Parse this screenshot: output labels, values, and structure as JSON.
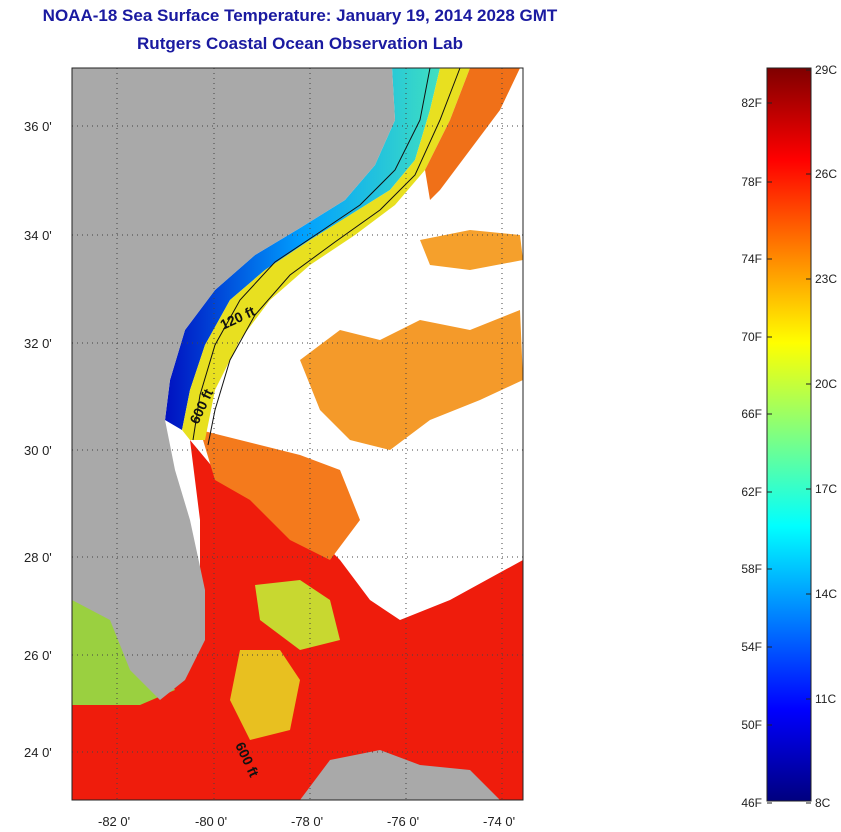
{
  "header": {
    "title": "NOAA-18 Sea Surface Temperature:  January 19, 2014 2028 GMT",
    "subtitle": "Rutgers Coastal Ocean Observation Lab"
  },
  "map": {
    "lat_ticks": [
      "36 0'",
      "34 0'",
      "32 0'",
      "30 0'",
      "28 0'",
      "26 0'",
      "24 0'"
    ],
    "lon_ticks": [
      "-82 0'",
      "-80 0'",
      "-78 0'",
      "-76 0'",
      "-74 0'"
    ],
    "contour_labels": [
      "120 ft",
      "600 ft",
      "600 ft"
    ],
    "colors": {
      "land": "#a9a9a9",
      "cloud": "#ffffff"
    }
  },
  "colorbar": {
    "fahrenheit": [
      "82F",
      "78F",
      "74F",
      "70F",
      "66F",
      "62F",
      "58F",
      "54F",
      "50F",
      "46F"
    ],
    "celsius": [
      "29C",
      "26C",
      "23C",
      "20C",
      "17C",
      "14C",
      "11C",
      "8C"
    ],
    "stops": [
      "#00007f",
      "#0000ff",
      "#0080ff",
      "#00ffff",
      "#80ff80",
      "#ffff00",
      "#ff8000",
      "#ff0000",
      "#7f0000"
    ]
  }
}
